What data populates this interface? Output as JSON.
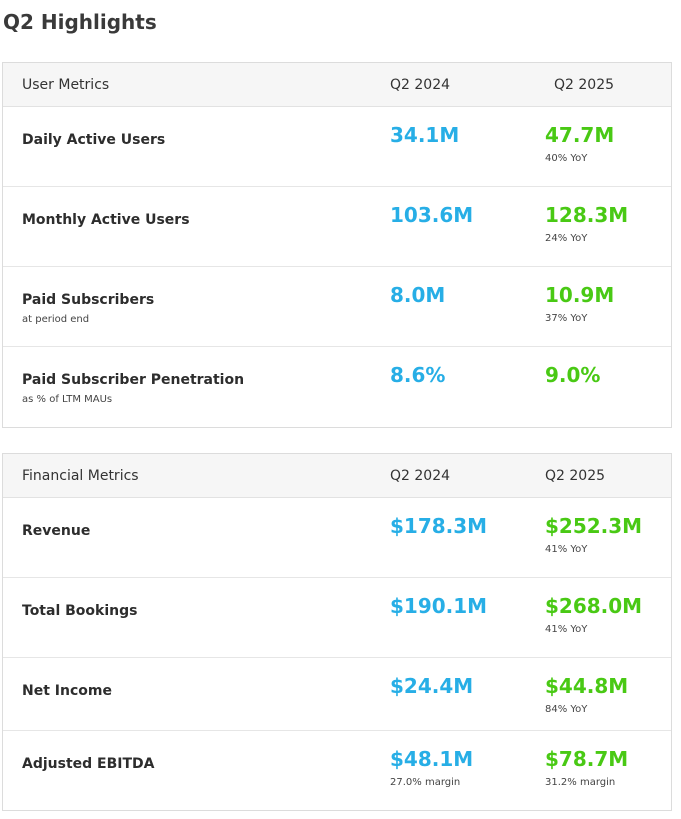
{
  "title": "Q2 Highlights",
  "user_metrics": {
    "header": {
      "label": "User Metrics",
      "col1": "Q2 2024",
      "col2": "Q2 2025"
    },
    "rows": [
      {
        "label": "Daily Active Users",
        "sub": "",
        "q2_2024": "34.1M",
        "q2_2025": "47.7M",
        "note_2025": "40% YoY"
      },
      {
        "label": "Monthly Active Users",
        "sub": "",
        "q2_2024": "103.6M",
        "q2_2025": "128.3M",
        "note_2025": "24% YoY"
      },
      {
        "label": "Paid Subscribers",
        "sub": "at period end",
        "q2_2024": "8.0M",
        "q2_2025": "10.9M",
        "note_2025": "37% YoY"
      },
      {
        "label": "Paid Subscriber Penetration",
        "sub": "as % of LTM MAUs",
        "q2_2024": "8.6%",
        "q2_2025": "9.0%",
        "note_2025": ""
      }
    ]
  },
  "financial_metrics": {
    "header": {
      "label": "Financial Metrics",
      "col1": "Q2 2024",
      "col2": "Q2 2025"
    },
    "rows": [
      {
        "label": "Revenue",
        "q2_2024": "$178.3M",
        "note_2024": "",
        "q2_2025": "$252.3M",
        "note_2025": "41% YoY"
      },
      {
        "label": "Total Bookings",
        "q2_2024": "$190.1M",
        "note_2024": "",
        "q2_2025": "$268.0M",
        "note_2025": "41% YoY"
      },
      {
        "label": "Net Income",
        "q2_2024": "$24.4M",
        "note_2024": "",
        "q2_2025": "$44.8M",
        "note_2025": "84% YoY"
      },
      {
        "label": "Adjusted EBITDA",
        "q2_2024": "$48.1M",
        "note_2024": "27.0% margin",
        "q2_2025": "$78.7M",
        "note_2025": "31.2% margin"
      }
    ]
  },
  "colors": {
    "q2_2024_value": "#27aee6",
    "q2_2025_value": "#49c914",
    "header_bg": "#f6f6f6",
    "border": "#dcdcdc"
  }
}
